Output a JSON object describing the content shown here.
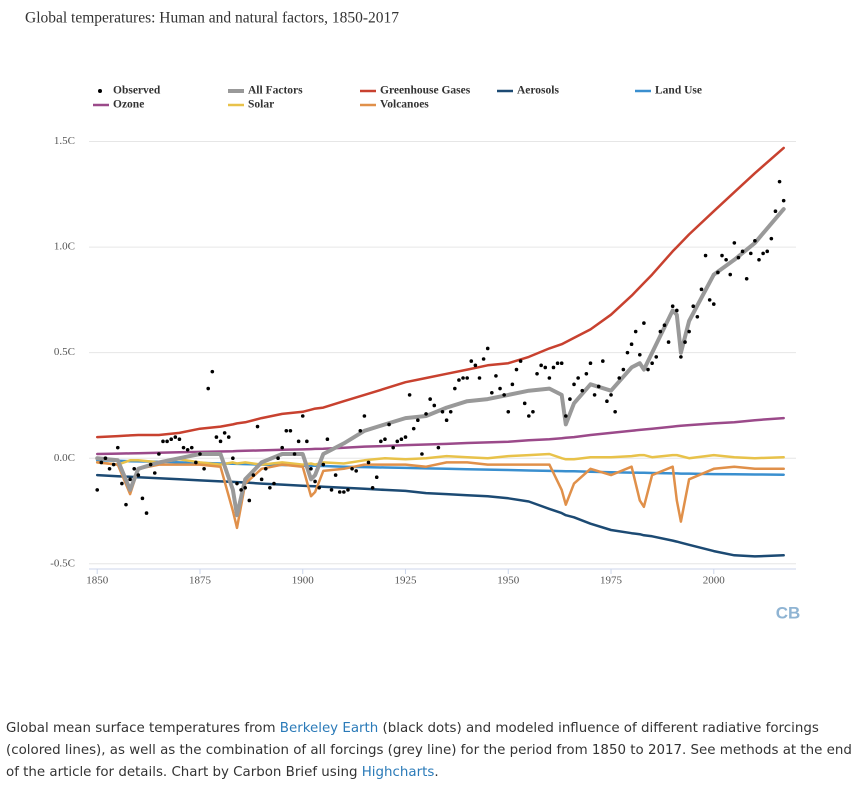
{
  "chart_data": {
    "type": "line",
    "title": "Global temperatures: Human and natural factors, 1850-2017",
    "logo": "CB",
    "caption": [
      {
        "text": "Global mean surface temperatures from "
      },
      {
        "text": "Berkeley Earth",
        "link": true
      },
      {
        "text": " (black dots) and modeled influence of different radiative forcings (colored lines), as well as the combination of all forcings (grey line) for the period from 1850 to 2017. See methods at the end of the article for details. Chart by Carbon Brief using "
      },
      {
        "text": "Highcharts",
        "link": true
      },
      {
        "text": "."
      }
    ],
    "xlim": [
      1848,
      2020
    ],
    "xticks": [
      1850,
      1875,
      1900,
      1925,
      1950,
      1975,
      2000
    ],
    "ylim": [
      -0.52,
      1.55
    ],
    "yticks": [
      {
        "value": 1.5,
        "label": "1.5C"
      },
      {
        "value": 1.0,
        "label": "1.0C"
      },
      {
        "value": 0.5,
        "label": "0.5C"
      },
      {
        "value": 0.0,
        "label": "0.0C"
      },
      {
        "value": -0.5,
        "label": "-0.5C"
      }
    ],
    "grid": true,
    "x": [
      1850,
      1855,
      1858,
      1860,
      1865,
      1870,
      1875,
      1880,
      1883,
      1884,
      1886,
      1890,
      1895,
      1900,
      1902,
      1903,
      1905,
      1910,
      1915,
      1920,
      1925,
      1930,
      1935,
      1940,
      1945,
      1950,
      1955,
      1960,
      1963,
      1964,
      1966,
      1970,
      1975,
      1980,
      1982,
      1983,
      1985,
      1990,
      1991,
      1992,
      1994,
      2000,
      2005,
      2010,
      2017
    ],
    "series": [
      {
        "name": "Observed",
        "color": "#000000",
        "marker": "dot",
        "x": [
          1850,
          1851,
          1852,
          1853,
          1854,
          1855,
          1856,
          1857,
          1858,
          1859,
          1860,
          1861,
          1862,
          1863,
          1864,
          1865,
          1866,
          1867,
          1868,
          1869,
          1870,
          1871,
          1872,
          1873,
          1874,
          1875,
          1876,
          1877,
          1878,
          1879,
          1880,
          1881,
          1882,
          1883,
          1884,
          1885,
          1886,
          1887,
          1888,
          1889,
          1890,
          1891,
          1892,
          1893,
          1894,
          1895,
          1896,
          1897,
          1898,
          1899,
          1900,
          1901,
          1902,
          1903,
          1904,
          1905,
          1906,
          1907,
          1908,
          1909,
          1910,
          1911,
          1912,
          1913,
          1914,
          1915,
          1916,
          1917,
          1918,
          1919,
          1920,
          1921,
          1922,
          1923,
          1924,
          1925,
          1926,
          1927,
          1928,
          1929,
          1930,
          1931,
          1932,
          1933,
          1934,
          1935,
          1936,
          1937,
          1938,
          1939,
          1940,
          1941,
          1942,
          1943,
          1944,
          1945,
          1946,
          1947,
          1948,
          1949,
          1950,
          1951,
          1952,
          1953,
          1954,
          1955,
          1956,
          1957,
          1958,
          1959,
          1960,
          1961,
          1962,
          1963,
          1964,
          1965,
          1966,
          1967,
          1968,
          1969,
          1970,
          1971,
          1972,
          1973,
          1974,
          1975,
          1976,
          1977,
          1978,
          1979,
          1980,
          1981,
          1982,
          1983,
          1984,
          1985,
          1986,
          1987,
          1988,
          1989,
          1990,
          1991,
          1992,
          1993,
          1994,
          1995,
          1996,
          1997,
          1998,
          1999,
          2000,
          2001,
          2002,
          2003,
          2004,
          2005,
          2006,
          2007,
          2008,
          2009,
          2010,
          2011,
          2012,
          2013,
          2014,
          2015,
          2016,
          2017
        ],
        "values": [
          -0.15,
          -0.02,
          0.0,
          -0.05,
          -0.03,
          0.05,
          -0.12,
          -0.22,
          -0.1,
          -0.05,
          -0.08,
          -0.19,
          -0.26,
          -0.03,
          -0.07,
          0.02,
          0.08,
          0.08,
          0.09,
          0.1,
          0.09,
          0.05,
          0.04,
          0.05,
          -0.02,
          0.02,
          -0.05,
          0.33,
          0.41,
          0.1,
          0.08,
          0.12,
          0.1,
          0.0,
          -0.12,
          -0.15,
          -0.14,
          -0.2,
          -0.08,
          0.15,
          -0.1,
          -0.05,
          -0.14,
          -0.12,
          0.0,
          0.05,
          0.13,
          0.13,
          0.02,
          0.08,
          0.2,
          0.08,
          -0.05,
          -0.11,
          -0.14,
          -0.03,
          0.09,
          -0.15,
          -0.08,
          -0.16,
          -0.16,
          -0.15,
          -0.05,
          -0.06,
          0.13,
          0.2,
          -0.02,
          -0.14,
          -0.09,
          0.08,
          0.09,
          0.16,
          0.05,
          0.08,
          0.09,
          0.1,
          0.3,
          0.14,
          0.18,
          0.02,
          0.21,
          0.28,
          0.25,
          0.05,
          0.22,
          0.18,
          0.22,
          0.33,
          0.37,
          0.38,
          0.38,
          0.46,
          0.44,
          0.38,
          0.47,
          0.52,
          0.31,
          0.39,
          0.33,
          0.3,
          0.22,
          0.35,
          0.42,
          0.46,
          0.26,
          0.2,
          0.22,
          0.4,
          0.44,
          0.43,
          0.38,
          0.43,
          0.45,
          0.45,
          0.2,
          0.28,
          0.35,
          0.38,
          0.32,
          0.4,
          0.45,
          0.3,
          0.34,
          0.46,
          0.27,
          0.3,
          0.22,
          0.38,
          0.42,
          0.5,
          0.54,
          0.6,
          0.49,
          0.64,
          0.42,
          0.45,
          0.48,
          0.6,
          0.63,
          0.55,
          0.72,
          0.7,
          0.48,
          0.55,
          0.6,
          0.72,
          0.67,
          0.8,
          0.96,
          0.75,
          0.73,
          0.88,
          0.96,
          0.94,
          0.87,
          1.02,
          0.95,
          0.98,
          0.85,
          0.97,
          1.03,
          0.94,
          0.97,
          0.98,
          1.04,
          1.17,
          1.31,
          1.22
        ]
      },
      {
        "name": "All Factors",
        "color": "#999999",
        "width": 4,
        "values": [
          0.0,
          -0.01,
          -0.15,
          -0.05,
          -0.02,
          0.0,
          0.02,
          0.02,
          -0.15,
          -0.27,
          -0.1,
          -0.02,
          0.02,
          0.02,
          -0.1,
          -0.08,
          0.02,
          0.07,
          0.13,
          0.16,
          0.19,
          0.2,
          0.24,
          0.27,
          0.28,
          0.3,
          0.32,
          0.33,
          0.3,
          0.16,
          0.26,
          0.35,
          0.32,
          0.43,
          0.45,
          0.42,
          0.5,
          0.7,
          0.68,
          0.5,
          0.65,
          0.87,
          0.94,
          1.02,
          1.18
        ]
      },
      {
        "name": "Greenhouse Gases",
        "color": "#c8412f",
        "width": 2.5,
        "values": [
          0.1,
          0.105,
          0.108,
          0.11,
          0.11,
          0.12,
          0.14,
          0.15,
          0.16,
          0.165,
          0.17,
          0.19,
          0.21,
          0.22,
          0.23,
          0.235,
          0.24,
          0.27,
          0.3,
          0.33,
          0.36,
          0.38,
          0.4,
          0.42,
          0.44,
          0.45,
          0.48,
          0.52,
          0.54,
          0.55,
          0.57,
          0.61,
          0.68,
          0.77,
          0.81,
          0.83,
          0.87,
          0.98,
          1.0,
          1.02,
          1.06,
          1.17,
          1.26,
          1.35,
          1.47
        ]
      },
      {
        "name": "Aerosols",
        "color": "#1c4a73",
        "width": 2.5,
        "values": [
          -0.08,
          -0.085,
          -0.088,
          -0.09,
          -0.095,
          -0.1,
          -0.105,
          -0.11,
          -0.112,
          -0.113,
          -0.115,
          -0.12,
          -0.125,
          -0.13,
          -0.132,
          -0.133,
          -0.135,
          -0.14,
          -0.145,
          -0.15,
          -0.155,
          -0.165,
          -0.17,
          -0.175,
          -0.18,
          -0.19,
          -0.205,
          -0.24,
          -0.26,
          -0.27,
          -0.28,
          -0.31,
          -0.34,
          -0.355,
          -0.36,
          -0.365,
          -0.37,
          -0.39,
          -0.395,
          -0.4,
          -0.41,
          -0.44,
          -0.46,
          -0.465,
          -0.46
        ]
      },
      {
        "name": "Land Use",
        "color": "#3a8fcf",
        "width": 2.5,
        "values": [
          -0.01,
          -0.012,
          -0.014,
          -0.015,
          -0.017,
          -0.02,
          -0.022,
          -0.025,
          -0.026,
          -0.027,
          -0.028,
          -0.03,
          -0.032,
          -0.035,
          -0.036,
          -0.036,
          -0.037,
          -0.04,
          -0.042,
          -0.044,
          -0.046,
          -0.048,
          -0.05,
          -0.052,
          -0.054,
          -0.056,
          -0.058,
          -0.06,
          -0.061,
          -0.062,
          -0.062,
          -0.064,
          -0.066,
          -0.068,
          -0.069,
          -0.069,
          -0.07,
          -0.072,
          -0.072,
          -0.073,
          -0.073,
          -0.075,
          -0.076,
          -0.077,
          -0.078
        ]
      },
      {
        "name": "Ozone",
        "color": "#9b4a8a",
        "width": 2.5,
        "values": [
          0.02,
          0.022,
          0.023,
          0.024,
          0.026,
          0.028,
          0.03,
          0.032,
          0.033,
          0.034,
          0.035,
          0.037,
          0.04,
          0.042,
          0.043,
          0.044,
          0.045,
          0.05,
          0.055,
          0.058,
          0.062,
          0.065,
          0.068,
          0.072,
          0.075,
          0.078,
          0.085,
          0.09,
          0.095,
          0.097,
          0.1,
          0.11,
          0.12,
          0.13,
          0.134,
          0.136,
          0.14,
          0.15,
          0.152,
          0.154,
          0.157,
          0.165,
          0.17,
          0.18,
          0.19
        ]
      },
      {
        "name": "Solar",
        "color": "#e8c24a",
        "width": 2.5,
        "values": [
          -0.02,
          -0.03,
          -0.01,
          -0.01,
          -0.02,
          -0.005,
          -0.02,
          -0.03,
          -0.02,
          -0.025,
          -0.02,
          -0.03,
          -0.02,
          -0.03,
          -0.025,
          -0.03,
          -0.02,
          -0.025,
          -0.01,
          0.0,
          -0.005,
          0.0,
          0.01,
          0.005,
          0.0,
          0.01,
          0.015,
          0.02,
          0.0,
          -0.005,
          -0.005,
          0.005,
          0.005,
          0.01,
          0.015,
          0.015,
          0.005,
          0.015,
          0.015,
          0.01,
          0.0,
          0.015,
          0.005,
          0.0,
          0.005
        ]
      },
      {
        "name": "Volcanoes",
        "color": "#e0904a",
        "width": 2.5,
        "values": [
          -0.02,
          -0.03,
          -0.17,
          -0.05,
          -0.03,
          -0.03,
          -0.03,
          -0.04,
          -0.25,
          -0.33,
          -0.12,
          -0.05,
          -0.03,
          -0.04,
          -0.18,
          -0.16,
          -0.06,
          -0.05,
          -0.03,
          -0.03,
          -0.03,
          -0.04,
          -0.02,
          -0.02,
          -0.03,
          -0.03,
          -0.03,
          -0.03,
          -0.15,
          -0.22,
          -0.12,
          -0.05,
          -0.08,
          -0.04,
          -0.2,
          -0.23,
          -0.08,
          -0.04,
          -0.2,
          -0.3,
          -0.1,
          -0.05,
          -0.04,
          -0.05,
          -0.05
        ]
      }
    ]
  }
}
